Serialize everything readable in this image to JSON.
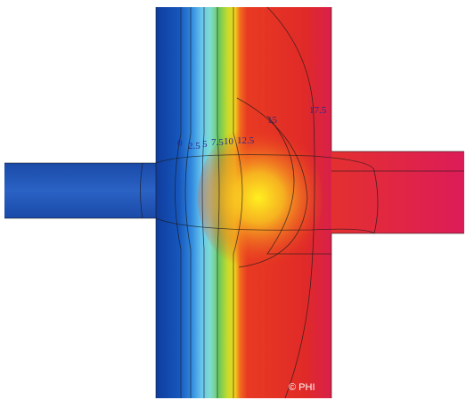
{
  "isotherm_labels": [
    "0",
    "2.5",
    "5",
    "7.5",
    "10",
    "12.5",
    "15",
    "17.5"
  ],
  "copyright": "© PHI"
}
